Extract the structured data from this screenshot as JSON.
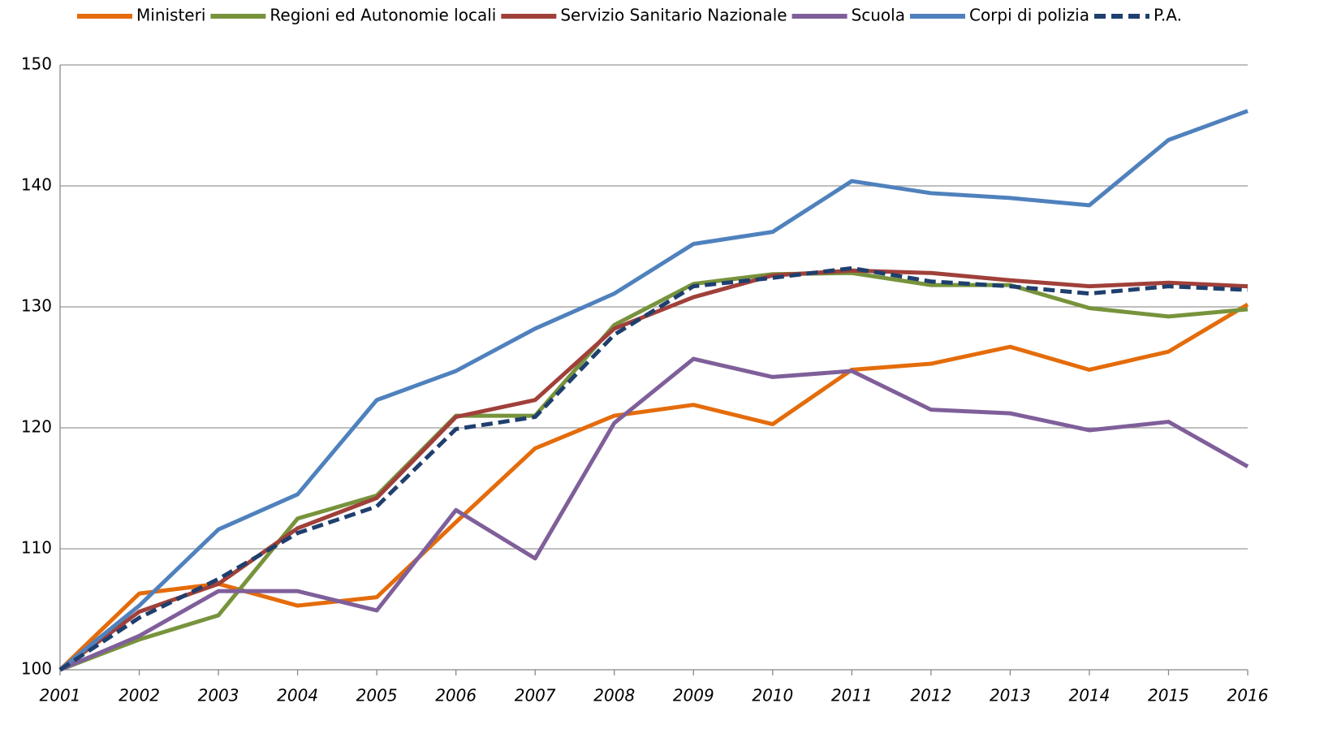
{
  "chart_data": {
    "type": "line",
    "categories": [
      "2001",
      "2002",
      "2003",
      "2004",
      "2005",
      "2006",
      "2007",
      "2008",
      "2009",
      "2010",
      "2011",
      "2012",
      "2013",
      "2014",
      "2015",
      "2016"
    ],
    "series": [
      {
        "name": "Ministeri",
        "color": "#e46c0a",
        "values": [
          100,
          106.3,
          107.1,
          105.3,
          106.0,
          112.2,
          118.3,
          121.0,
          121.9,
          120.3,
          124.8,
          125.3,
          126.7,
          124.8,
          126.3,
          130.2
        ]
      },
      {
        "name": "Regioni ed Autonomie locali",
        "color": "#77933c",
        "values": [
          100,
          102.5,
          104.5,
          112.5,
          114.4,
          121.0,
          121.0,
          128.5,
          131.9,
          132.7,
          132.8,
          131.8,
          131.8,
          129.9,
          129.2,
          129.8
        ]
      },
      {
        "name": "Servizio Sanitario Nazionale",
        "color": "#a0403a",
        "values": [
          100,
          104.8,
          107.1,
          111.7,
          114.2,
          120.9,
          122.3,
          128.2,
          130.8,
          132.6,
          133.0,
          132.8,
          132.2,
          131.7,
          132.0,
          131.7
        ]
      },
      {
        "name": "Scuola",
        "color": "#7f5f9a",
        "values": [
          100,
          102.8,
          106.5,
          106.5,
          104.9,
          113.2,
          109.2,
          120.4,
          125.7,
          124.2,
          124.7,
          121.5,
          121.2,
          119.8,
          120.5,
          116.8
        ]
      },
      {
        "name": "Corpi di polizia",
        "color": "#4f81bd",
        "values": [
          100,
          105.3,
          111.6,
          114.5,
          122.3,
          124.7,
          128.2,
          131.1,
          135.2,
          136.2,
          140.4,
          139.4,
          139.0,
          138.4,
          143.8,
          146.2
        ]
      },
      {
        "name": "P.A.",
        "color": "#1f3f6e",
        "dashed": true,
        "values": [
          100,
          104.3,
          107.5,
          111.3,
          113.5,
          119.9,
          120.9,
          127.7,
          131.7,
          132.4,
          133.2,
          132.1,
          131.7,
          131.1,
          131.7,
          131.4
        ]
      }
    ],
    "ylim": [
      100,
      150
    ],
    "yticks": [
      100,
      110,
      120,
      130,
      140,
      150
    ],
    "grid": true,
    "legend": "top"
  }
}
